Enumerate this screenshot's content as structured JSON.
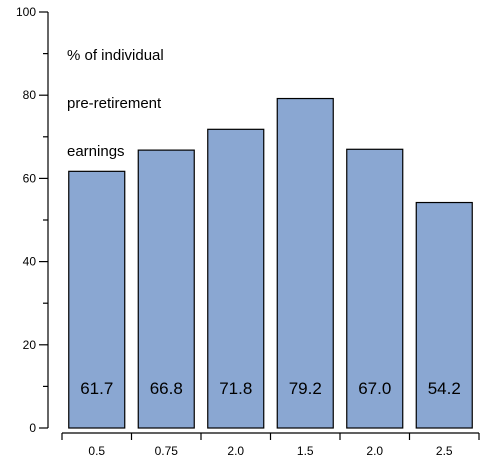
{
  "chart_data": {
    "type": "bar",
    "title": "",
    "ylabel_lines": [
      "% of individual",
      "pre-retirement",
      "earnings"
    ],
    "xlabel": "",
    "categories": [
      "0.5",
      "0.75",
      "2.0",
      "1.5",
      "2.0",
      "2.5"
    ],
    "values": [
      61.7,
      66.8,
      71.8,
      79.2,
      67.0,
      54.2
    ],
    "data_labels": [
      "61.7",
      "66.8",
      "71.8",
      "79.2",
      "67.0",
      "54.2"
    ],
    "ylim": [
      0,
      100
    ],
    "y_ticks_major": [
      "0",
      "20",
      "40",
      "60",
      "80",
      "100"
    ],
    "y_ticks_minor": [
      10,
      30,
      50,
      70,
      90
    ],
    "grid": false,
    "bar_color": "#8aa7d2",
    "bar_edge_color": "#000000"
  }
}
